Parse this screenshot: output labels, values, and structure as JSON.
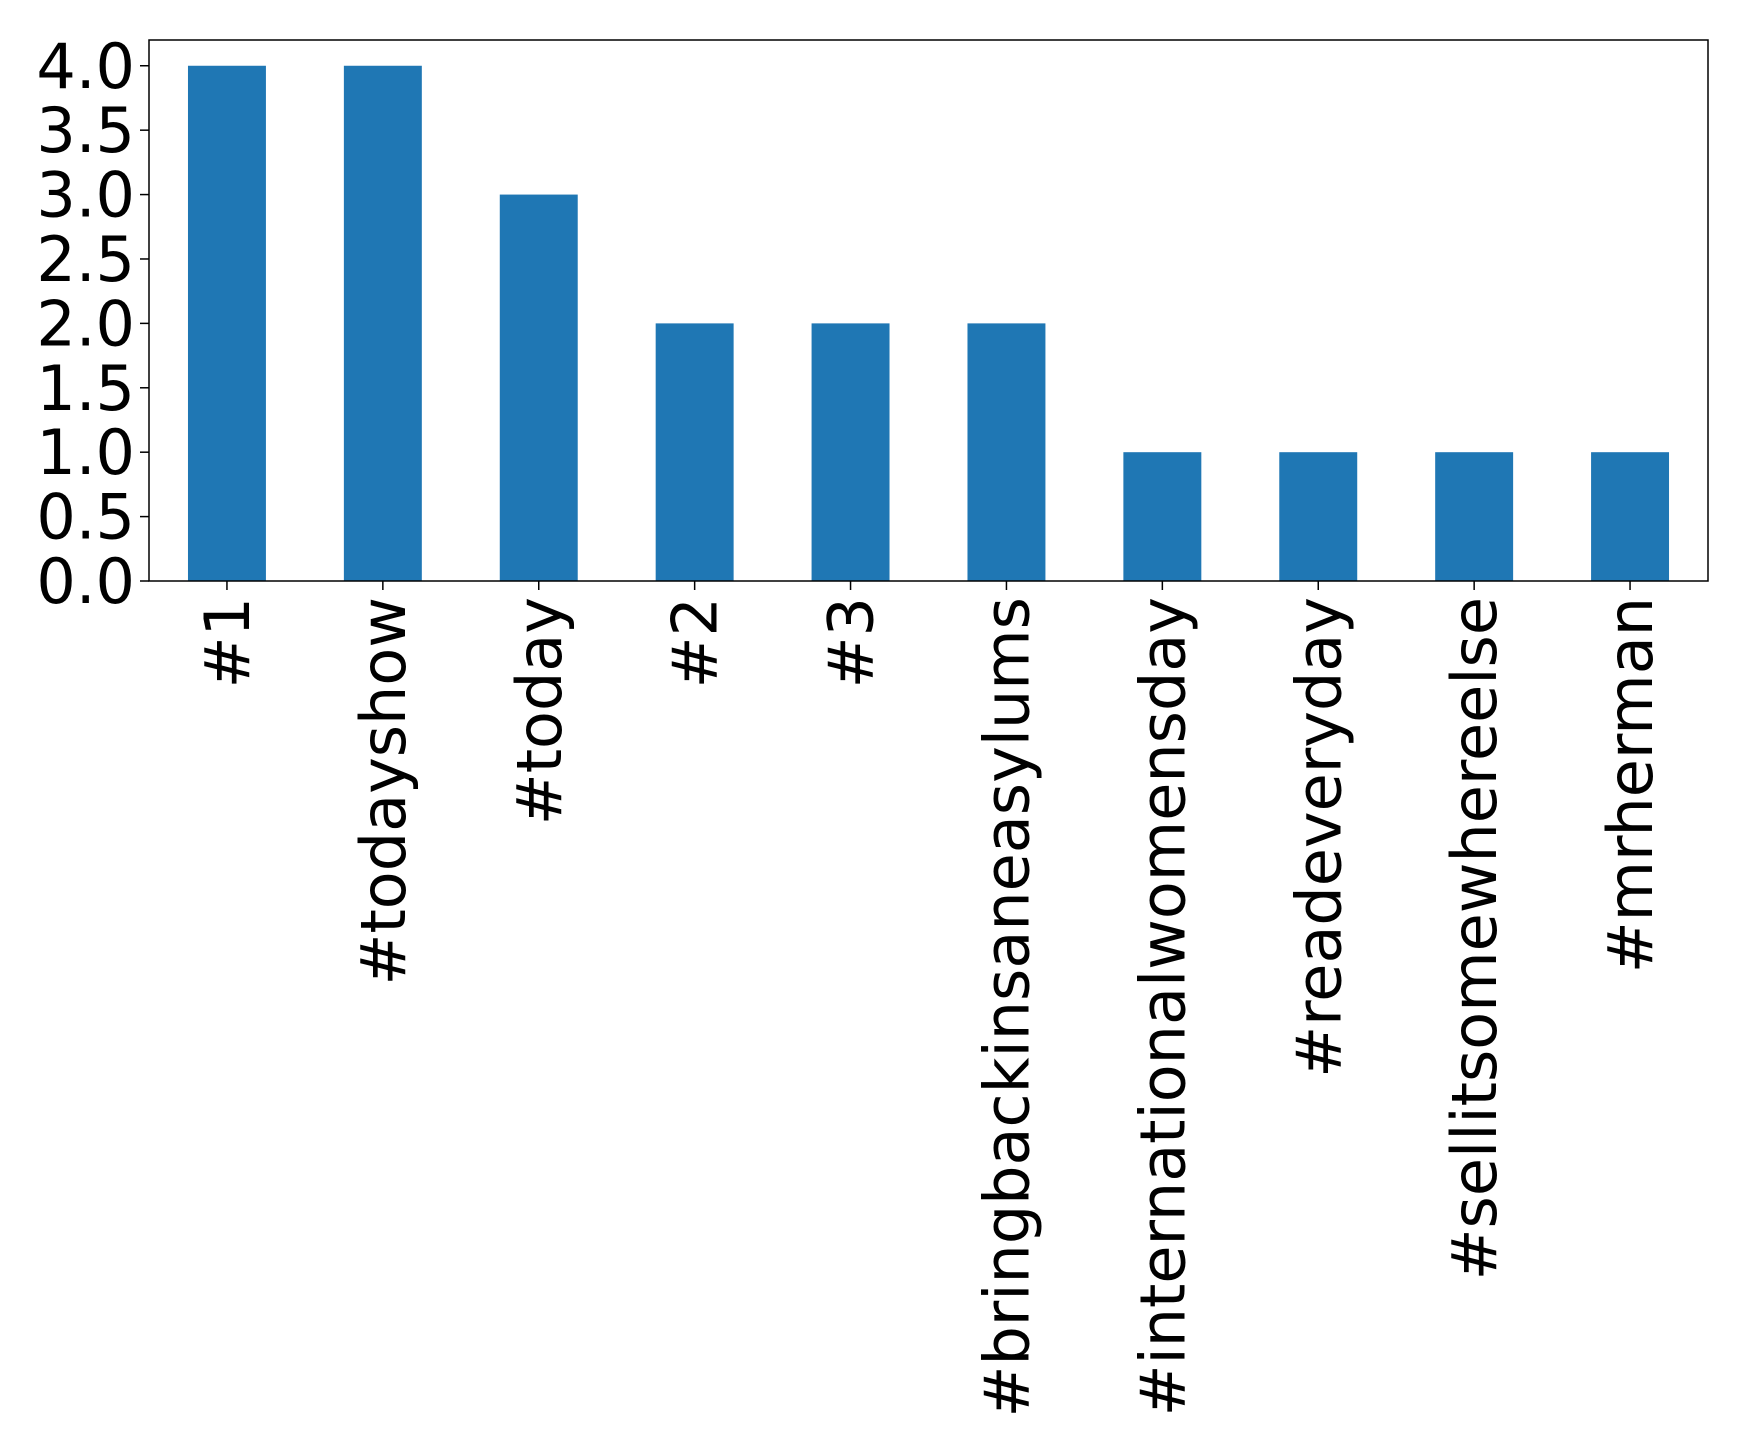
{
  "chart_data": {
    "type": "bar",
    "categories": [
      "#1",
      "#todayshow",
      "#today",
      "#2",
      "#3",
      "#bringbackinsaneasylums",
      "#internationalwomensday",
      "#readeveryday",
      "#sellitsomewhereelse",
      "#mrherman"
    ],
    "values": [
      4,
      4,
      3,
      2,
      2,
      2,
      1,
      1,
      1,
      1
    ],
    "color": "#1f77b4",
    "ylim": [
      0,
      4.2
    ],
    "yticks": [
      {
        "value": 0,
        "label": "0.0"
      },
      {
        "value": 0.5,
        "label": "0.5"
      },
      {
        "value": 1,
        "label": "1.0"
      },
      {
        "value": 1.5,
        "label": "1.5"
      },
      {
        "value": 2,
        "label": "2.0"
      },
      {
        "value": 2.5,
        "label": "2.5"
      },
      {
        "value": 3,
        "label": "3.0"
      },
      {
        "value": 3.5,
        "label": "3.5"
      },
      {
        "value": 4,
        "label": "4.0"
      }
    ],
    "grid": false
  }
}
